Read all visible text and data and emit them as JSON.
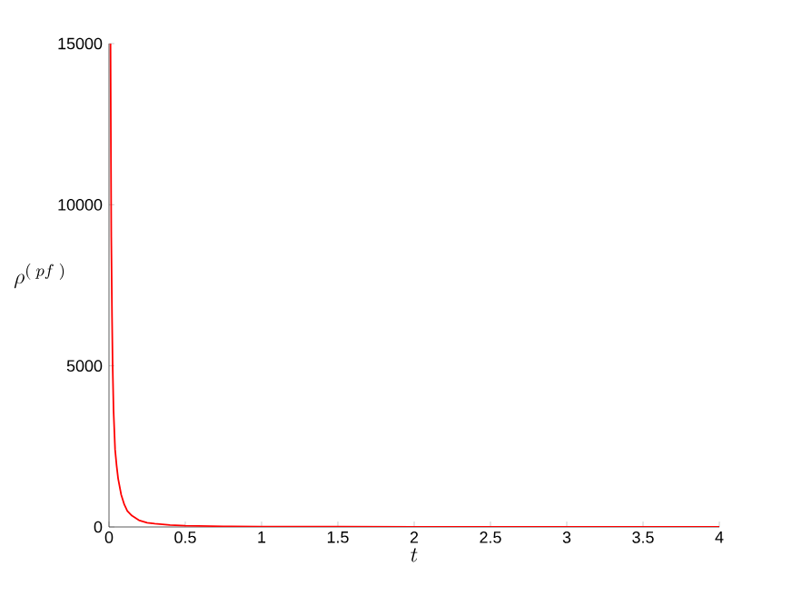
{
  "chart_data": {
    "type": "line",
    "xlabel": "t",
    "ylabel": "\\rho^{(\\;pf\\;)}",
    "xlim": [
      0,
      4
    ],
    "ylim": [
      0,
      15000
    ],
    "xticks": [
      0,
      0.5,
      1,
      1.5,
      2,
      2.5,
      3,
      3.5,
      4
    ],
    "yticks": [
      0,
      5000,
      10000,
      15000
    ],
    "grid": false,
    "marker": "none",
    "line_style": "solid",
    "series": [
      {
        "color": "#ff0000",
        "x": [
          0.01,
          0.015,
          0.02,
          0.024,
          0.03,
          0.04,
          0.05,
          0.06,
          0.08,
          0.1,
          0.12,
          0.15,
          0.2,
          0.25,
          0.3,
          0.4,
          0.5,
          0.75,
          1,
          1.5,
          2,
          2.5,
          3,
          3.5,
          4
        ],
        "values": [
          15000,
          9000,
          6500,
          5000,
          3600,
          2400,
          1900,
          1500,
          1000,
          700,
          500,
          350,
          200,
          130,
          100,
          60,
          40,
          20,
          10,
          10,
          0,
          0,
          0,
          0,
          0
        ]
      }
    ]
  }
}
